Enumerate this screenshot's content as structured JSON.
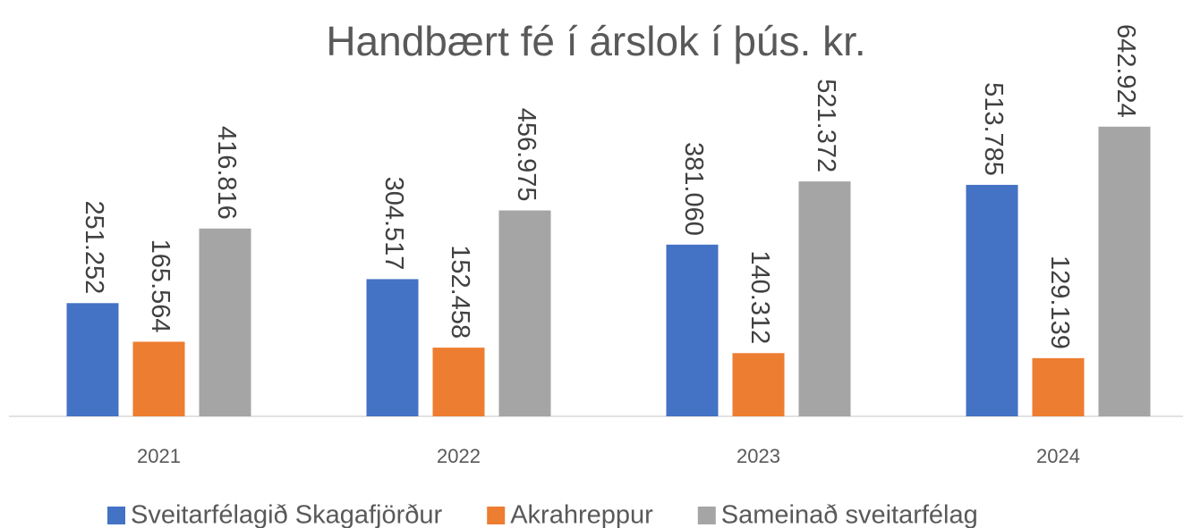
{
  "chart_data": {
    "type": "bar",
    "title": "Handbært fé í árslok í þús. kr.",
    "categories": [
      "2021",
      "2022",
      "2023",
      "2024"
    ],
    "series": [
      {
        "name": "Sveitarfélagið Skagafjörður",
        "color": "#4472c4",
        "values": [
          251252,
          304517,
          381060,
          513785
        ],
        "value_labels": [
          "251.252",
          "304.517",
          "381.060",
          "513.785"
        ]
      },
      {
        "name": "Akrahreppur",
        "color": "#ed7d31",
        "values": [
          165564,
          152458,
          140312,
          129139
        ],
        "value_labels": [
          "165.564",
          "152.458",
          "140.312",
          "129.139"
        ]
      },
      {
        "name": "Sameinað sveitarfélag",
        "color": "#a5a5a5",
        "values": [
          416816,
          456975,
          521372,
          642924
        ],
        "value_labels": [
          "416.816",
          "456.975",
          "521.372",
          "642.924"
        ]
      }
    ],
    "ylim": [
      0,
      700000
    ],
    "legend": "bottom"
  }
}
